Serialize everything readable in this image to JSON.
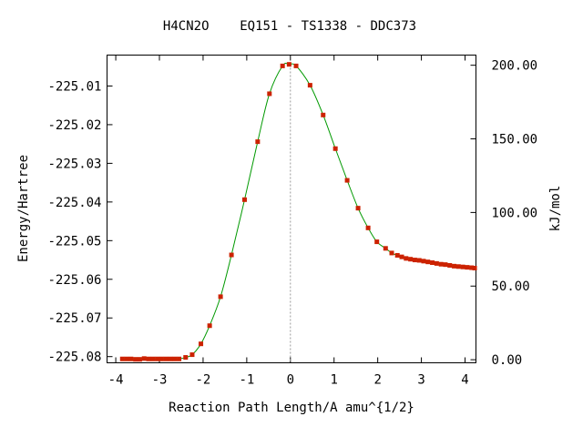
{
  "chart_data": {
    "type": "line",
    "title": "H4CN2O    EQ151 - TS1338 - DDC373",
    "xlabel": "Reaction Path Length/A amu^{1/2}",
    "ylabel": "Energy/Hartree",
    "ylabel_right": "kJ/mol",
    "xlim": [
      -4.2,
      4.25
    ],
    "ylim": [
      -225.0816,
      -225.002
    ],
    "ylim_right_kjmol": [
      -2.1,
      206.9
    ],
    "xticks": [
      -4,
      -3,
      -2,
      -1,
      0,
      1,
      2,
      3,
      4
    ],
    "xtick_labels": [
      "-4",
      "-3",
      "-2",
      "-1",
      "0",
      "1",
      "2",
      "3",
      "4"
    ],
    "yticks": [
      -225.01,
      -225.02,
      -225.03,
      -225.04,
      -225.05,
      -225.06,
      -225.07,
      -225.08
    ],
    "ytick_labels": [
      "-225.01",
      "-225.02",
      "-225.03",
      "-225.04",
      "-225.05",
      "-225.06",
      "-225.07",
      "-225.08"
    ],
    "yticks_right": [
      0,
      50,
      100,
      150,
      200
    ],
    "ytick_right_labels": [
      "0.00",
      "50.00",
      "100.00",
      "150.00",
      "200.00"
    ],
    "ts_marker_x": 0,
    "grid": false,
    "colors": {
      "curve": "#009900",
      "points": "#cc2200",
      "ts_line": "#999999",
      "frame": "#000000"
    },
    "series": [
      {
        "x": [
          -3.85,
          -3.75,
          -3.65,
          -3.55,
          -3.45,
          -3.35,
          -3.25,
          -3.15,
          -3.05,
          -2.95,
          -2.85,
          -2.75,
          -2.65,
          -2.55,
          -2.4,
          -2.25,
          -2.05,
          -1.85,
          -1.6,
          -1.35,
          -1.05,
          -0.75,
          -0.48,
          -0.18,
          -0.03,
          0.13,
          0.45,
          0.75,
          1.03,
          1.3,
          1.55,
          1.78,
          1.98,
          2.18,
          2.32,
          2.45,
          2.55,
          2.65,
          2.75,
          2.85,
          2.95,
          3.05,
          3.15,
          3.25,
          3.35,
          3.45,
          3.55,
          3.65,
          3.75,
          3.85,
          3.95,
          4.05,
          4.15,
          4.22
        ],
        "y": [
          -225.0806,
          -225.0806,
          -225.0806,
          -225.0807,
          -225.0807,
          -225.0805,
          -225.0806,
          -225.0806,
          -225.0806,
          -225.0806,
          -225.0806,
          -225.0806,
          -225.0806,
          -225.0806,
          -225.0802,
          -225.0795,
          -225.0767,
          -225.072,
          -225.0645,
          -225.0537,
          -225.0394,
          -225.0244,
          -225.012,
          -225.0048,
          -225.0044,
          -225.0048,
          -225.0098,
          -225.0175,
          -225.0262,
          -225.0344,
          -225.0416,
          -225.0467,
          -225.0503,
          -225.052,
          -225.0532,
          -225.0538,
          -225.0542,
          -225.0546,
          -225.0548,
          -225.055,
          -225.0551,
          -225.0553,
          -225.0555,
          -225.0557,
          -225.0559,
          -225.0561,
          -225.0562,
          -225.0564,
          -225.0566,
          -225.0567,
          -225.0568,
          -225.0569,
          -225.057,
          -225.0571
        ]
      }
    ]
  }
}
